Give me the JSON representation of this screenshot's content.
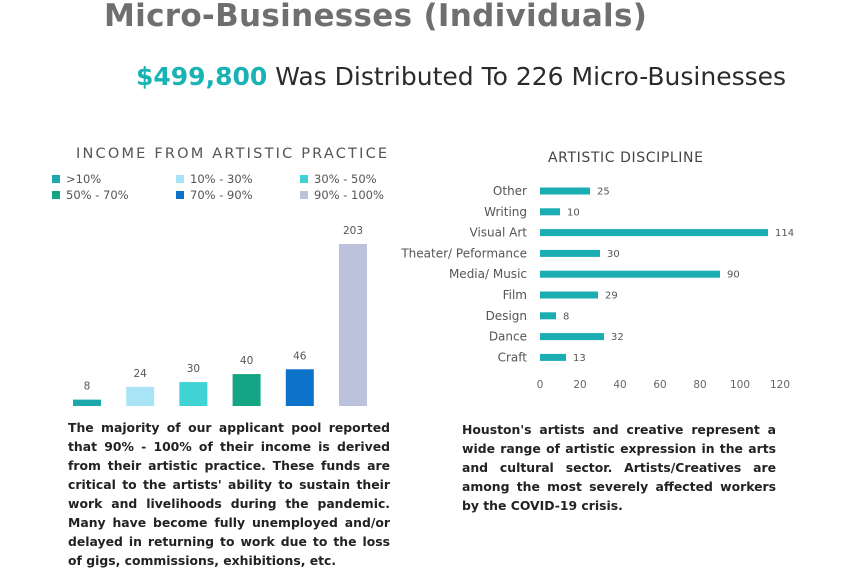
{
  "header": {
    "title": "Micro-Businesses (Individuals)",
    "amount": "$499,800",
    "subtitle_rest": " Was Distributed To 226 Micro-Businesses",
    "accent_color": "#19b2b5"
  },
  "left_chart": {
    "description": "The majority of our applicant pool reported that 90% - 100% of their income is derived from their artistic practice. These funds are critical to the artists' ability to sustain their work and livelihoods during the pandemic. Many have become fully unemployed and/or delayed in returning to work due to the loss of gigs, commissions, exhibitions, etc."
  },
  "right_chart": {
    "description": "Houston's artists and creative represent a wide range of artistic expression in the arts and cultural sector. Artists/Creatives are among the most severely affected workers by the COVID-19 crisis."
  },
  "chart_data": [
    {
      "type": "bar",
      "title": "INCOME FROM ARTISTIC PRACTICE",
      "categories": [
        ">10%",
        "10% - 30%",
        "30% - 50%",
        "50% - 70%",
        "70% - 90%",
        "90% - 100%"
      ],
      "values": [
        8,
        24,
        30,
        40,
        46,
        203
      ],
      "colors": [
        "#1ca9ae",
        "#a9e4f6",
        "#3fd3d5",
        "#14a584",
        "#0d72c9",
        "#bcc2dc"
      ],
      "legend": "top",
      "ylim": [
        0,
        203
      ],
      "data_labels": true,
      "grid": false
    },
    {
      "type": "bar",
      "orientation": "horizontal",
      "title": "ARTISTIC DISCIPLINE",
      "categories": [
        "Other",
        "Writing",
        "Visual Art",
        "Theater/ Peformance",
        "Media/ Music",
        "Film",
        "Design",
        "Dance",
        "Craft"
      ],
      "values": [
        25,
        10,
        114,
        30,
        90,
        29,
        8,
        32,
        13
      ],
      "color": "#1aaeb3",
      "xlim": [
        0,
        120
      ],
      "xticks": [
        0,
        20,
        40,
        60,
        80,
        100,
        120
      ],
      "data_labels": true,
      "grid": false
    }
  ]
}
